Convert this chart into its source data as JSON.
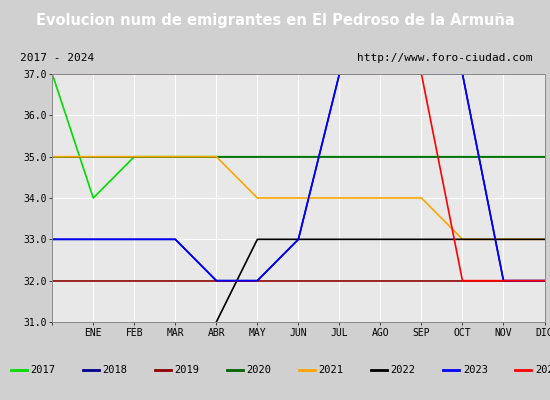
{
  "title": "Evolucion num de emigrantes en El Pedroso de la Armuña",
  "subtitle_left": "2017 - 2024",
  "subtitle_right": "http://www.foro-ciudad.com",
  "months": [
    "",
    "ENE",
    "FEB",
    "MAR",
    "ABR",
    "MAY",
    "JUN",
    "JUL",
    "AGO",
    "SEP",
    "OCT",
    "NOV",
    "DIC"
  ],
  "ylim": [
    31.0,
    37.0
  ],
  "yticks": [
    31.0,
    32.0,
    33.0,
    34.0,
    35.0,
    36.0,
    37.0
  ],
  "series": {
    "2017": {
      "color": "#00dd00",
      "x": [
        0,
        1,
        2,
        12
      ],
      "y": [
        37,
        34,
        35,
        35
      ]
    },
    "2018": {
      "color": "#00008b",
      "x": [
        0,
        3,
        4,
        5,
        6,
        7,
        8,
        9,
        10,
        11,
        12
      ],
      "y": [
        33,
        33,
        32,
        32,
        33,
        37,
        37,
        37,
        37,
        32,
        32
      ]
    },
    "2019": {
      "color": "#8b0000",
      "x": [
        0,
        12
      ],
      "y": [
        32,
        32
      ]
    },
    "2020": {
      "color": "#006400",
      "x": [
        0,
        12
      ],
      "y": [
        35,
        35
      ]
    },
    "2021": {
      "color": "#ffa500",
      "x": [
        0,
        4,
        5,
        9,
        10,
        12
      ],
      "y": [
        35,
        35,
        34,
        34,
        33,
        33
      ]
    },
    "2022": {
      "color": "#000000",
      "x": [
        4,
        5,
        12
      ],
      "y": [
        31,
        33,
        33
      ]
    },
    "2023": {
      "color": "#0000ff",
      "x": [
        0,
        3,
        4,
        5,
        6,
        7,
        8,
        9,
        10,
        11,
        12
      ],
      "y": [
        33,
        33,
        32,
        32,
        33,
        37,
        37,
        37,
        37,
        32,
        32
      ]
    },
    "2024": {
      "color": "#ff0000",
      "x": [
        0,
        9,
        10,
        12
      ],
      "y": [
        37,
        37,
        32,
        32
      ]
    }
  },
  "title_bg": "#4a90c4",
  "title_color": "white",
  "plot_bg": "#e8e8e8",
  "grid_color": "white",
  "legend_bg": "white"
}
